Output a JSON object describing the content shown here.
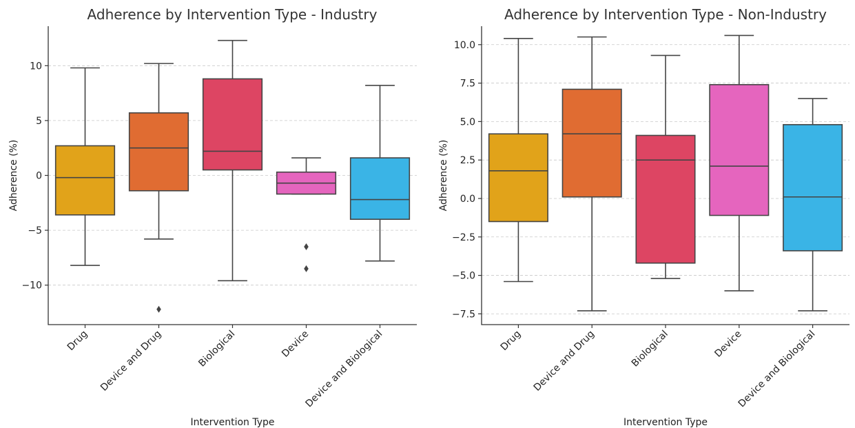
{
  "chart_data": [
    {
      "type": "box",
      "title": "Adherence by Intervention Type - Industry",
      "xlabel": "Intervention Type",
      "ylabel": "Adherence (%)",
      "ylim": [
        -13.6,
        13.6
      ],
      "yticks": [
        10,
        5,
        0,
        -5,
        -10
      ],
      "ytick_labels": [
        "10",
        "5",
        "0",
        "−5",
        "−10"
      ],
      "grid": "horizontal-dashed",
      "categories": [
        "Drug",
        "Device and Drug",
        "Biological",
        "Device",
        "Device and Biological"
      ],
      "colors": [
        "#e1a31a",
        "#e06c32",
        "#dd4563",
        "#e565be",
        "#3ab4e6"
      ],
      "boxes": [
        {
          "whislo": -8.2,
          "q1": -3.6,
          "med": -0.2,
          "q3": 2.7,
          "whishi": 9.8,
          "fliers": []
        },
        {
          "whislo": -5.8,
          "q1": -1.4,
          "med": 2.5,
          "q3": 5.7,
          "whishi": 10.2,
          "fliers": [
            -12.2
          ]
        },
        {
          "whislo": -9.6,
          "q1": 0.5,
          "med": 2.2,
          "q3": 8.8,
          "whishi": 12.3,
          "fliers": []
        },
        {
          "whislo": -1.7,
          "q1": -1.7,
          "med": -0.7,
          "q3": 0.3,
          "whishi": 1.6,
          "fliers": [
            -6.5,
            -8.5
          ]
        },
        {
          "whislo": -7.8,
          "q1": -4.0,
          "med": -2.2,
          "q3": 1.6,
          "whishi": 8.2,
          "fliers": []
        }
      ]
    },
    {
      "type": "box",
      "title": "Adherence by Intervention Type - Non-Industry",
      "xlabel": "Intervention Type",
      "ylabel": "Adherence (%)",
      "ylim": [
        -8.2,
        11.2
      ],
      "yticks": [
        10.0,
        7.5,
        5.0,
        2.5,
        0.0,
        -2.5,
        -5.0,
        -7.5
      ],
      "ytick_labels": [
        "10.0",
        "7.5",
        "5.0",
        "2.5",
        "0.0",
        "−2.5",
        "−5.0",
        "−7.5"
      ],
      "grid": "horizontal-dashed",
      "categories": [
        "Drug",
        "Device and Drug",
        "Biological",
        "Device",
        "Device and Biological"
      ],
      "colors": [
        "#e1a31a",
        "#e06c32",
        "#dd4563",
        "#e565be",
        "#3ab4e6"
      ],
      "boxes": [
        {
          "whislo": -5.4,
          "q1": -1.5,
          "med": 1.8,
          "q3": 4.2,
          "whishi": 10.4,
          "fliers": []
        },
        {
          "whislo": -7.3,
          "q1": 0.1,
          "med": 4.2,
          "q3": 7.1,
          "whishi": 10.5,
          "fliers": []
        },
        {
          "whislo": -5.2,
          "q1": -4.2,
          "med": 2.5,
          "q3": 4.1,
          "whishi": 9.3,
          "fliers": []
        },
        {
          "whislo": -6.0,
          "q1": -1.1,
          "med": 2.1,
          "q3": 7.4,
          "whishi": 10.6,
          "fliers": []
        },
        {
          "whislo": -7.3,
          "q1": -3.4,
          "med": 0.1,
          "q3": 4.8,
          "whishi": 6.5,
          "fliers": []
        }
      ]
    }
  ]
}
